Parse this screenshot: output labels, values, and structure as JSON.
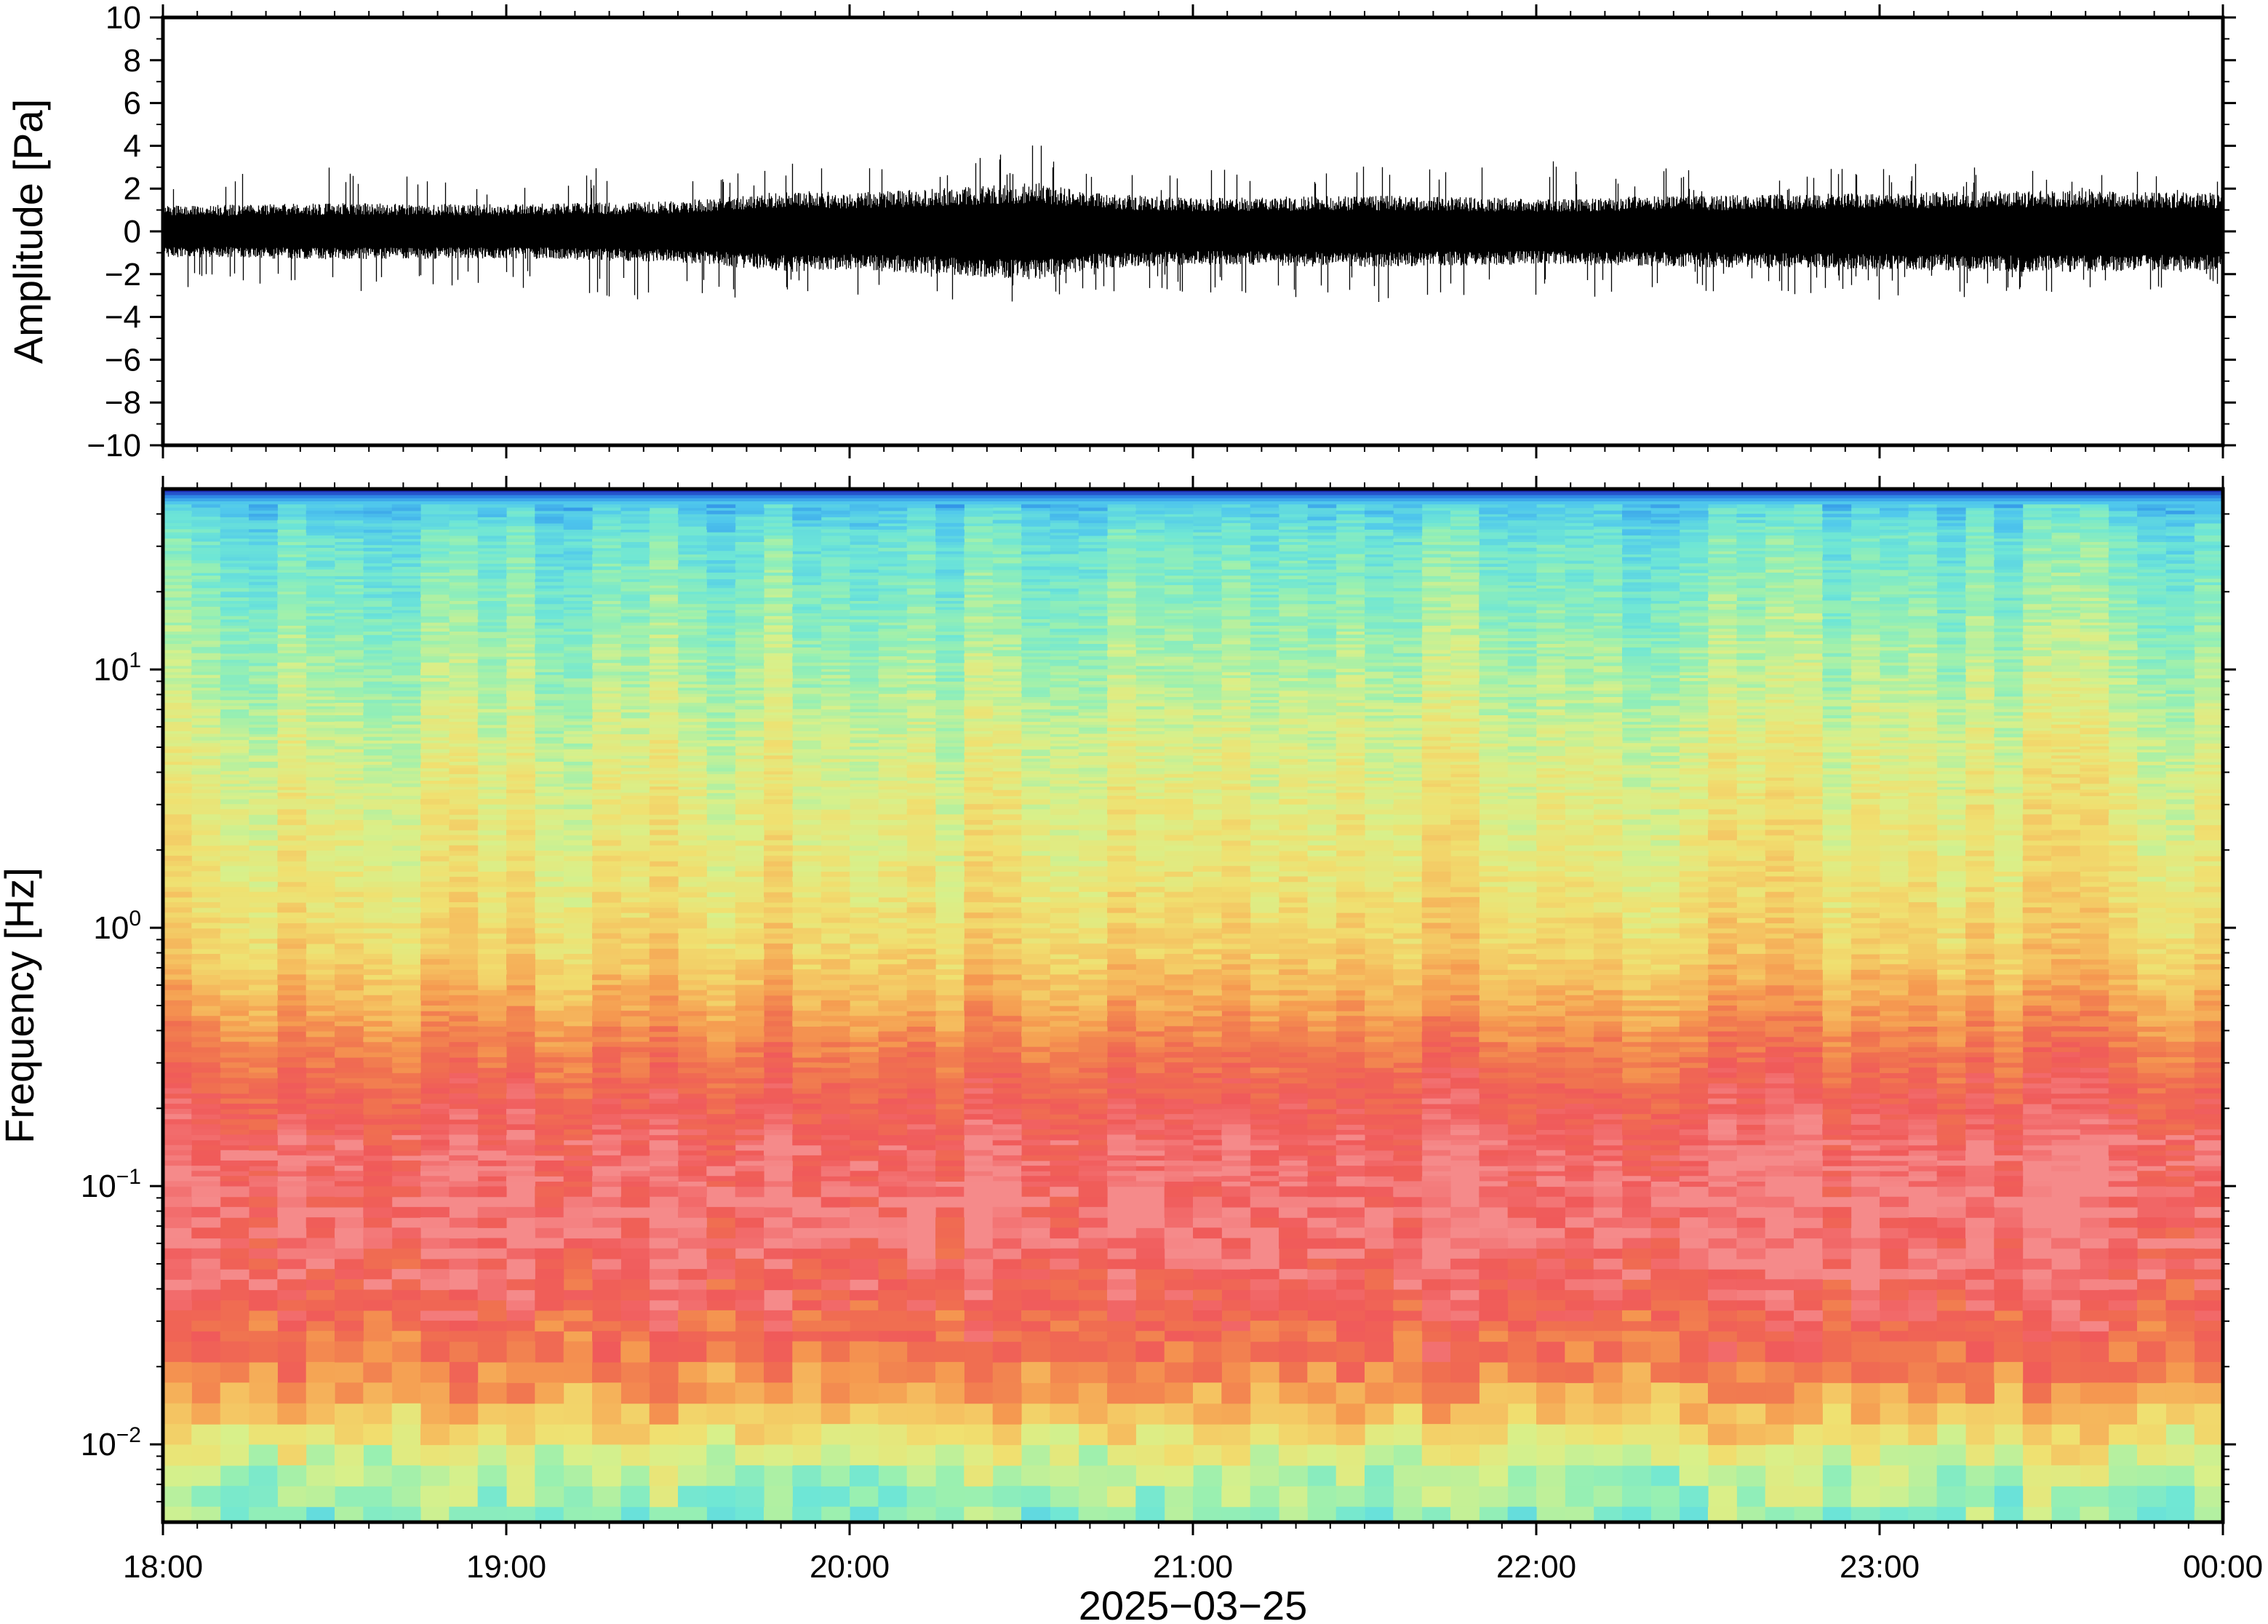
{
  "chart_data": [
    {
      "type": "line",
      "panel": "waveform",
      "ylabel": "Amplitude [Pa]",
      "ylim": [
        -10,
        10
      ],
      "yticks": [
        10,
        8,
        6,
        4,
        2,
        0,
        -2,
        -4,
        -6,
        -8,
        -10
      ],
      "ytick_labels": [
        "10",
        "8",
        "6",
        "4",
        "2",
        "0",
        "−2",
        "−4",
        "−6",
        "−8",
        "−10"
      ],
      "series_color": "#000000",
      "envelope": {
        "time_h": [
          18.0,
          18.5,
          19.0,
          19.5,
          19.83,
          20.0,
          20.3,
          20.55,
          20.7,
          21.0,
          21.5,
          22.0,
          22.5,
          23.0,
          23.5,
          24.0
        ],
        "typical_abs_pa": [
          1.0,
          1.1,
          1.05,
          1.2,
          1.6,
          1.5,
          1.7,
          1.9,
          1.5,
          1.3,
          1.4,
          1.3,
          1.4,
          1.5,
          1.6,
          1.5
        ],
        "peak_abs_pa": [
          2.9,
          3.0,
          2.6,
          3.4,
          3.2,
          3.0,
          3.3,
          4.1,
          3.0,
          2.9,
          3.3,
          3.4,
          2.8,
          3.2,
          3.0,
          2.6
        ]
      }
    },
    {
      "type": "heatmap",
      "panel": "spectrogram",
      "ylabel": "Frequency [Hz]",
      "yscale": "log",
      "ylim_hz": [
        0.005,
        50
      ],
      "yticks_hz": [
        10,
        1,
        0.1,
        0.01
      ],
      "ytick_labels": [
        {
          "base": "10",
          "exp": "1"
        },
        {
          "base": "10",
          "exp": "0"
        },
        {
          "base": "10",
          "exp": "−1"
        },
        {
          "base": "10",
          "exp": "−2"
        }
      ],
      "colormap": [
        "#1f2db8",
        "#2f8fe8",
        "#50c8ec",
        "#6ee6d6",
        "#9af0b0",
        "#d8f08a",
        "#f0e070",
        "#f5c060",
        "#f59a50",
        "#f07050",
        "#f05a5a",
        "#f58a8a"
      ],
      "profile_by_log10_freq": {
        "log10_f": [
          -2.3,
          -2.1,
          -1.9,
          -1.7,
          -1.5,
          -1.3,
          -1.1,
          -0.9,
          -0.7,
          -0.5,
          -0.3,
          -0.1,
          0.1,
          0.3,
          0.5,
          0.7,
          0.9,
          1.1,
          1.3,
          1.5,
          1.64,
          1.69
        ],
        "level": [
          0.33,
          0.42,
          0.62,
          0.8,
          0.87,
          0.94,
          0.97,
          0.95,
          0.9,
          0.82,
          0.7,
          0.6,
          0.55,
          0.52,
          0.5,
          0.47,
          0.42,
          0.38,
          0.33,
          0.29,
          0.2,
          0.0
        ]
      }
    }
  ],
  "time_axis": {
    "ticks_h": [
      18,
      19,
      20,
      21,
      22,
      23,
      24
    ],
    "tick_labels": [
      "18:00",
      "19:00",
      "20:00",
      "21:00",
      "22:00",
      "23:00",
      "00:00"
    ],
    "xlabel": "2025−03−25"
  }
}
